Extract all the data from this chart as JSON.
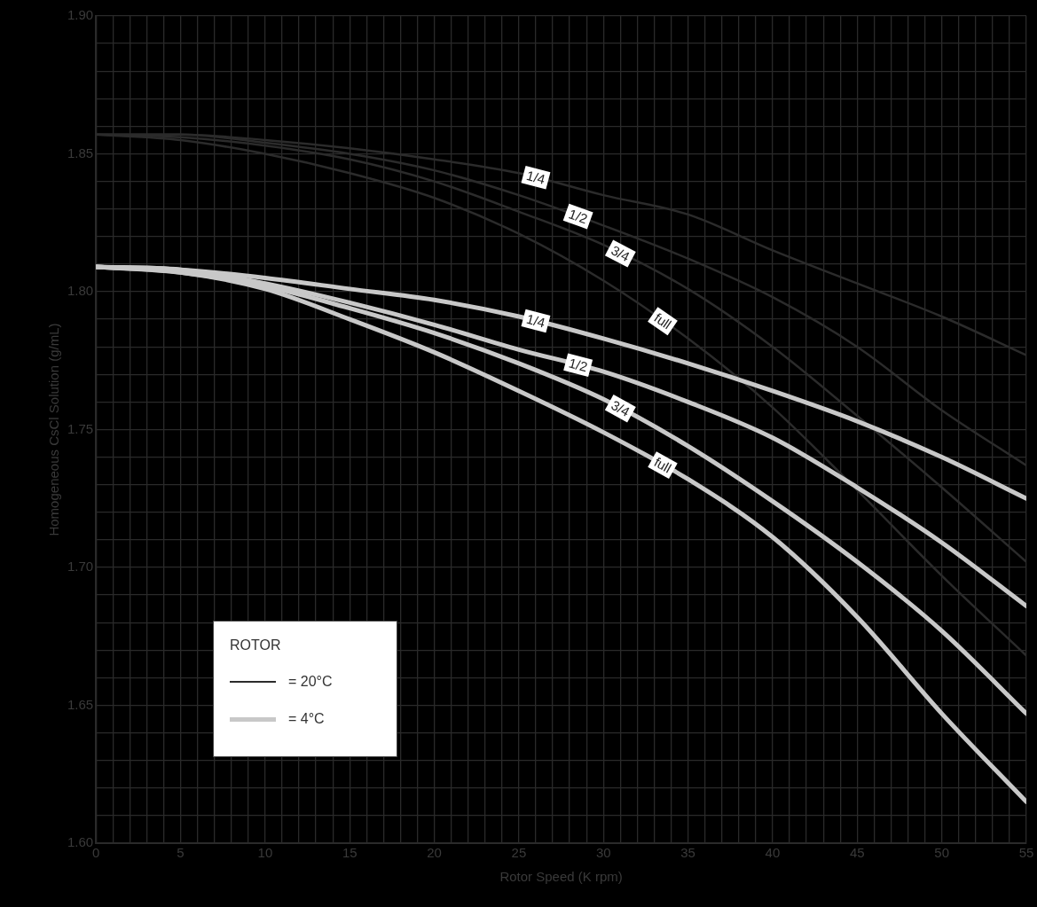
{
  "chart_data": {
    "type": "line",
    "xlabel": "Rotor Speed (K rpm)",
    "ylabel": "Homogeneous CsCl Solution (g/mL)",
    "legend_title": "ROTOR",
    "grid": true,
    "marker": "none",
    "line_style": "solid",
    "annotations": [
      "=  20°C",
      "=  4°C"
    ],
    "x": [
      0,
      5,
      10,
      15,
      20,
      25,
      30,
      35,
      40,
      45,
      50,
      55
    ],
    "xlim": [
      0,
      55
    ],
    "xticks": [
      0,
      {
        "value": 1,
        "label": null
      },
      {
        "value": 2,
        "label": null
      },
      {
        "value": 3,
        "label": null
      },
      {
        "value": 4,
        "label": null
      },
      5,
      {
        "value": 6,
        "label": null
      },
      {
        "value": 7,
        "label": null
      },
      {
        "value": 8,
        "label": null
      },
      {
        "value": 9,
        "label": null
      },
      10,
      {
        "value": 11,
        "label": null
      },
      {
        "value": 12,
        "label": null
      },
      {
        "value": 13,
        "label": null
      },
      {
        "value": 14,
        "label": null
      },
      15,
      {
        "value": 16,
        "label": null
      },
      {
        "value": 17,
        "label": null
      },
      {
        "value": 18,
        "label": null
      },
      {
        "value": 19,
        "label": null
      },
      20,
      {
        "value": 21,
        "label": null
      },
      {
        "value": 22,
        "label": null
      },
      {
        "value": 23,
        "label": null
      },
      {
        "value": 24,
        "label": null
      },
      25,
      {
        "value": 26,
        "label": null
      },
      {
        "value": 27,
        "label": null
      },
      {
        "value": 28,
        "label": null
      },
      {
        "value": 29,
        "label": null
      },
      30,
      {
        "value": 31,
        "label": null
      },
      {
        "value": 32,
        "label": null
      },
      {
        "value": 33,
        "label": null
      },
      {
        "value": 34,
        "label": null
      },
      35,
      {
        "value": 36,
        "label": null
      },
      {
        "value": 37,
        "label": null
      },
      {
        "value": 38,
        "label": null
      },
      {
        "value": 39,
        "label": null
      },
      40,
      {
        "value": 41,
        "label": null
      },
      {
        "value": 42,
        "label": null
      },
      {
        "value": 43,
        "label": null
      },
      {
        "value": 44,
        "label": null
      },
      45,
      {
        "value": 46,
        "label": null
      },
      {
        "value": 47,
        "label": null
      },
      {
        "value": 48,
        "label": null
      },
      {
        "value": 49,
        "label": null
      },
      50,
      {
        "value": 51,
        "label": null
      },
      {
        "value": 52,
        "label": null
      },
      {
        "value": 53,
        "label": null
      },
      {
        "value": 54,
        "label": null
      },
      55
    ],
    "ylim": [
      1.6,
      1.9
    ],
    "yticks": [
      {
        "value": 1.6,
        "label": "1.60"
      },
      {
        "value": 1.61,
        "label": null
      },
      {
        "value": 1.62,
        "label": null
      },
      {
        "value": 1.63,
        "label": null
      },
      {
        "value": 1.64,
        "label": null
      },
      {
        "value": 1.65,
        "label": "1.65"
      },
      {
        "value": 1.66,
        "label": null
      },
      {
        "value": 1.67,
        "label": null
      },
      {
        "value": 1.68,
        "label": null
      },
      {
        "value": 1.69,
        "label": null
      },
      {
        "value": 1.7,
        "label": "1.70"
      },
      {
        "value": 1.71,
        "label": null
      },
      {
        "value": 1.72,
        "label": null
      },
      {
        "value": 1.73,
        "label": null
      },
      {
        "value": 1.74,
        "label": null
      },
      {
        "value": 1.75,
        "label": "1.75"
      },
      {
        "value": 1.76,
        "label": null
      },
      {
        "value": 1.77,
        "label": null
      },
      {
        "value": 1.78,
        "label": null
      },
      {
        "value": 1.79,
        "label": null
      },
      {
        "value": 1.8,
        "label": "1.80"
      },
      {
        "value": 1.81,
        "label": null
      },
      {
        "value": 1.82,
        "label": null
      },
      {
        "value": 1.83,
        "label": null
      },
      {
        "value": 1.84,
        "label": null
      },
      {
        "value": 1.85,
        "label": "1.85"
      },
      {
        "value": 1.86,
        "label": null
      },
      {
        "value": 1.87,
        "label": null
      },
      {
        "value": 1.88,
        "label": null
      },
      {
        "value": 1.89,
        "label": null
      },
      {
        "value": 1.9,
        "label": "1.90"
      }
    ],
    "series": [
      {
        "name": "1/4",
        "color": "#2b2b2b",
        "values": [
          1.857,
          1.857,
          1.855,
          1.852,
          1.848,
          1.843,
          1.835,
          1.828,
          1.815,
          1.803,
          1.791,
          1.777
        ]
      },
      {
        "name": "1/2",
        "color": "#2b2b2b",
        "values": [
          1.857,
          1.857,
          1.854,
          1.85,
          1.844,
          1.835,
          1.824,
          1.812,
          1.798,
          1.78,
          1.757,
          1.737
        ]
      },
      {
        "name": "3/4",
        "color": "#2b2b2b",
        "values": [
          1.857,
          1.856,
          1.853,
          1.848,
          1.84,
          1.829,
          1.817,
          1.801,
          1.78,
          1.755,
          1.729,
          1.702
        ]
      },
      {
        "name": "full",
        "color": "#2b2b2b",
        "values": [
          1.857,
          1.855,
          1.85,
          1.843,
          1.834,
          1.821,
          1.804,
          1.783,
          1.758,
          1.728,
          1.697,
          1.668
        ]
      },
      {
        "name": "1/4",
        "color": "#c8c8c8",
        "values": [
          1.809,
          1.808,
          1.805,
          1.801,
          1.797,
          1.791,
          1.783,
          1.774,
          1.764,
          1.753,
          1.74,
          1.725
        ]
      },
      {
        "name": "1/2",
        "color": "#c8c8c8",
        "values": [
          1.809,
          1.808,
          1.803,
          1.796,
          1.788,
          1.779,
          1.771,
          1.76,
          1.747,
          1.729,
          1.709,
          1.686
        ]
      },
      {
        "name": "3/4",
        "color": "#c8c8c8",
        "values": [
          1.809,
          1.807,
          1.802,
          1.794,
          1.785,
          1.774,
          1.761,
          1.744,
          1.724,
          1.702,
          1.677,
          1.647
        ]
      },
      {
        "name": "full",
        "color": "#c8c8c8",
        "values": [
          1.809,
          1.807,
          1.801,
          1.79,
          1.778,
          1.764,
          1.749,
          1.732,
          1.711,
          1.682,
          1.647,
          1.615
        ]
      }
    ]
  }
}
